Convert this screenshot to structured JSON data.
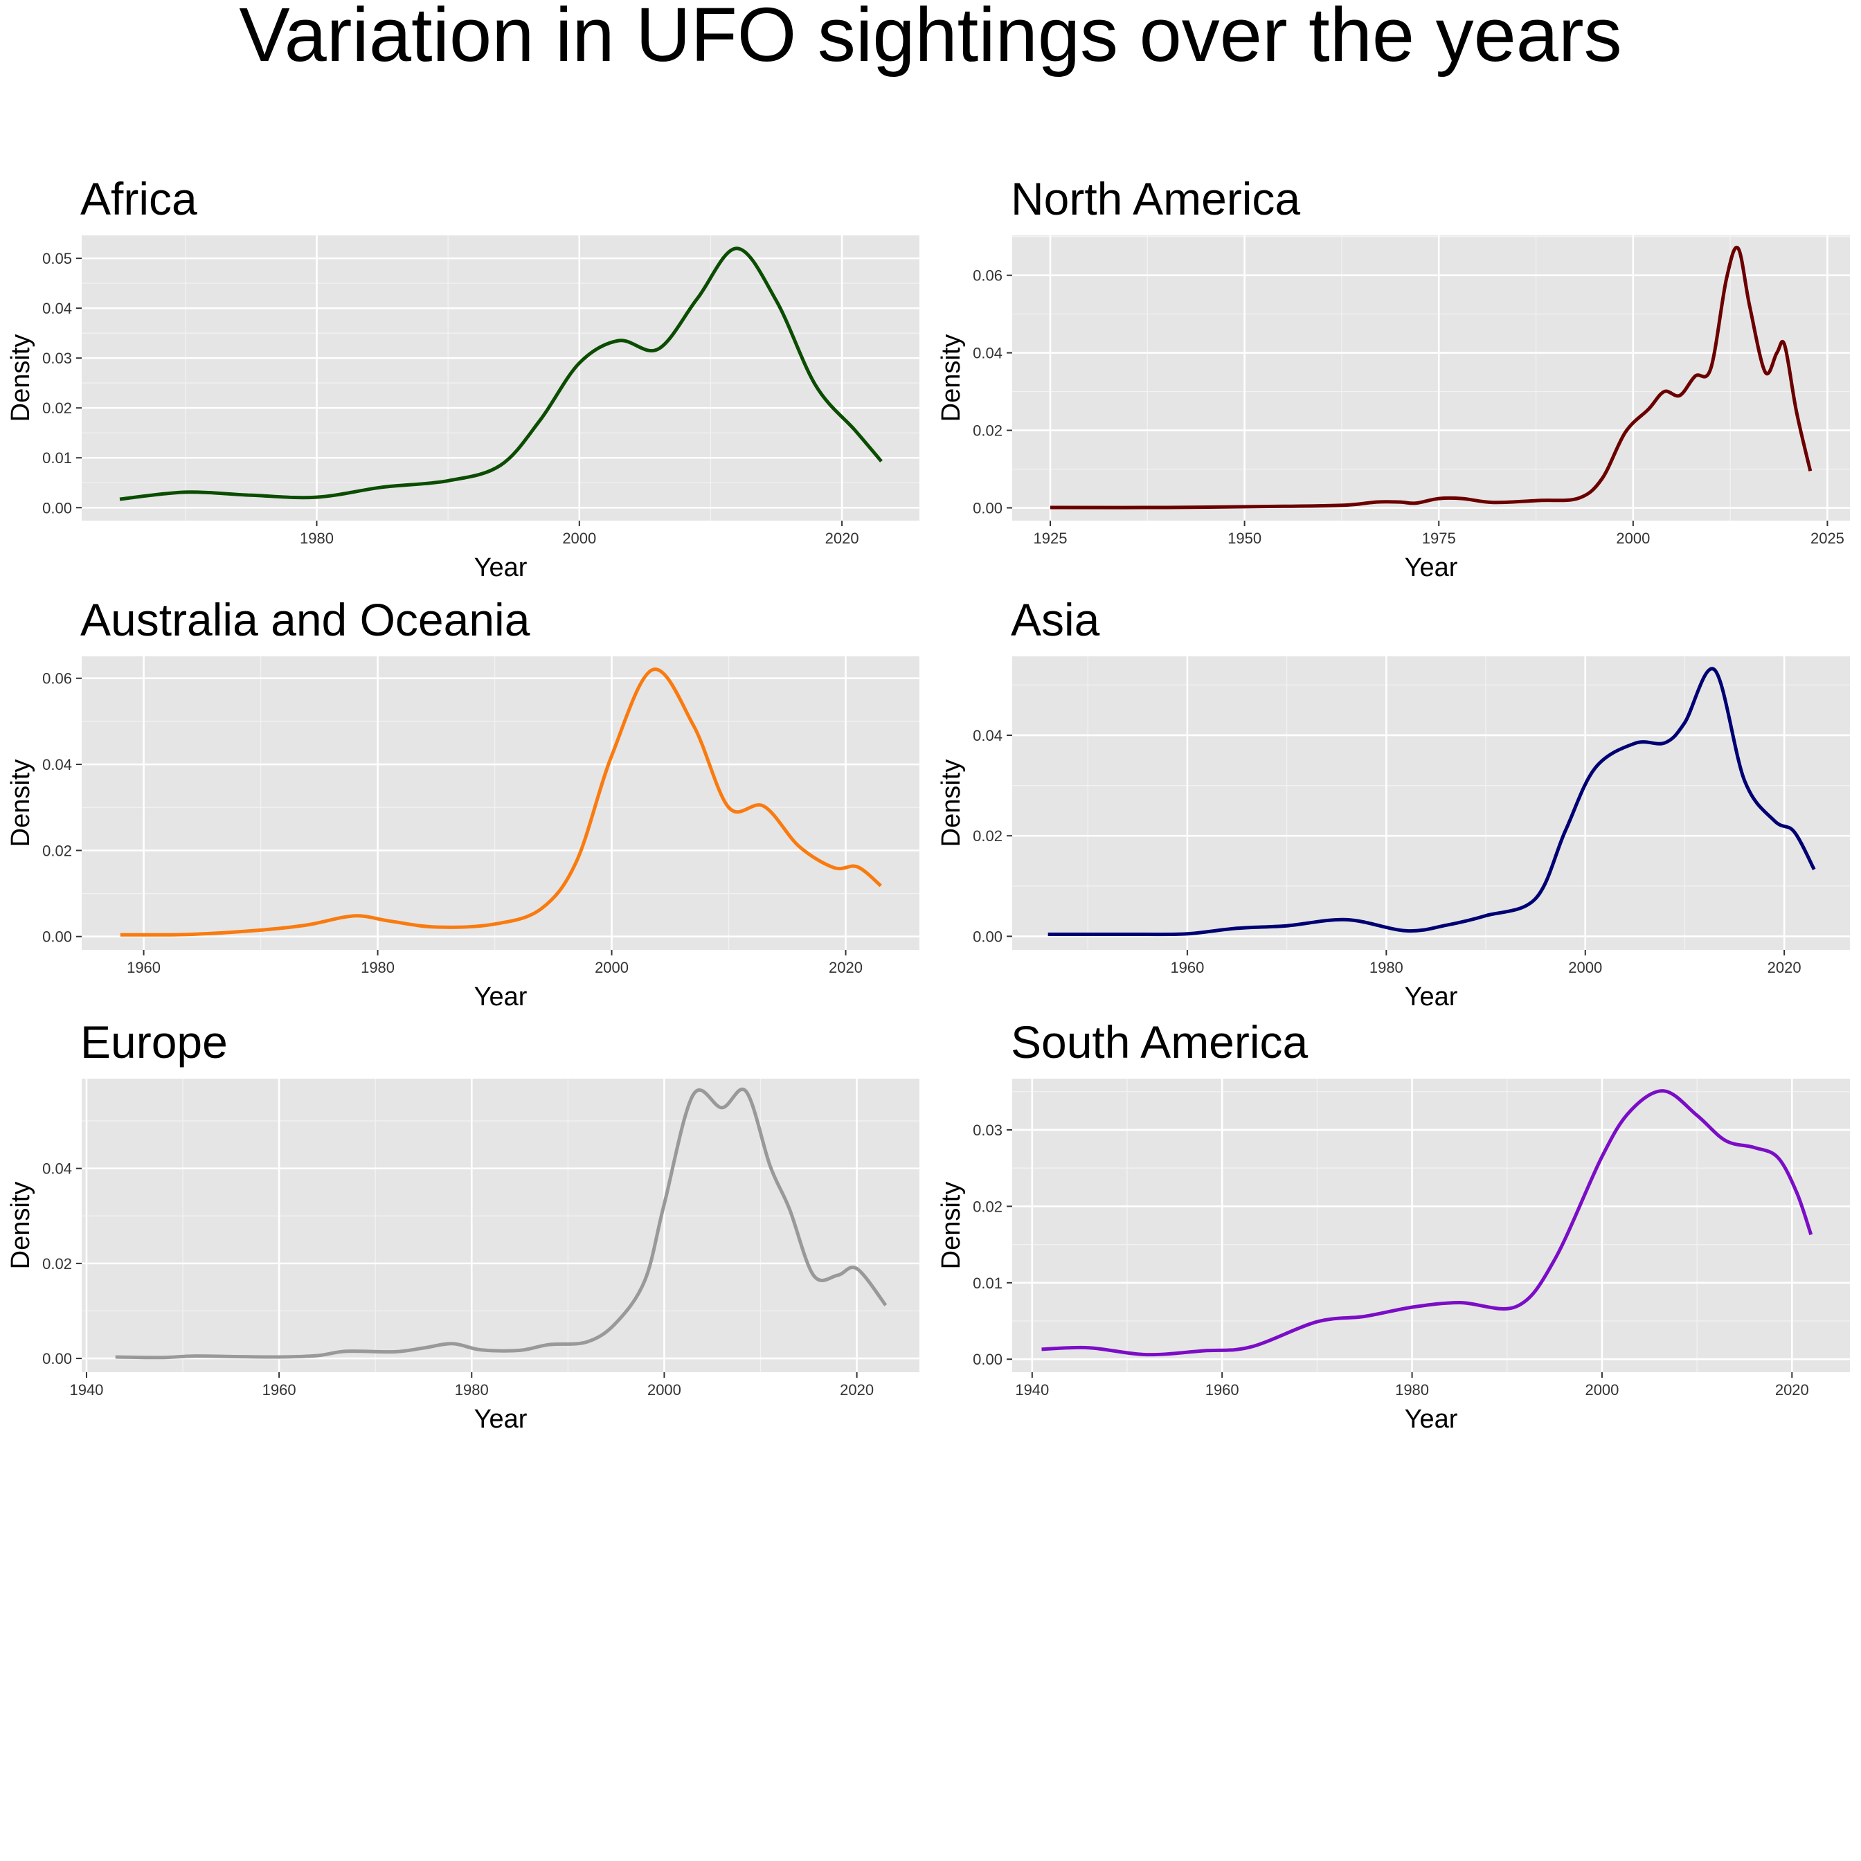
{
  "title": "Variation in UFO sightings over the years",
  "chart_data": [
    {
      "type": "line",
      "title": "Africa",
      "xlabel": "Year",
      "ylabel": "Density",
      "color": "#0b4d00",
      "xlim": [
        1962.1,
        2025.9
      ],
      "ylim": [
        -0.0026,
        0.0546
      ],
      "xticks": [
        1980,
        2000,
        2020
      ],
      "yticks": [
        0.0,
        0.01,
        0.02,
        0.03,
        0.04,
        0.05
      ],
      "ytick_labels": [
        "0.00",
        "0.01",
        "0.02",
        "0.03",
        "0.04",
        "0.05"
      ],
      "grid": true,
      "x": [
        1965,
        1970,
        1975,
        1980,
        1985,
        1990,
        1994,
        1997,
        2000,
        2003,
        2006,
        2009,
        2012,
        2015,
        2018,
        2021,
        2023
      ],
      "y": [
        0.0017,
        0.0031,
        0.0025,
        0.0021,
        0.0041,
        0.0054,
        0.0085,
        0.0175,
        0.029,
        0.0335,
        0.0318,
        0.042,
        0.052,
        0.0415,
        0.0245,
        0.0155,
        0.0093
      ]
    },
    {
      "type": "line",
      "title": "North America",
      "xlabel": "Year",
      "ylabel": "Density",
      "color": "#6b0000",
      "xlim": [
        1920.1,
        2027.9
      ],
      "ylim": [
        -0.0033,
        0.0703
      ],
      "xticks": [
        1925,
        1950,
        1975,
        2000,
        2025
      ],
      "yticks": [
        0.0,
        0.02,
        0.04,
        0.06
      ],
      "ytick_labels": [
        "0.00",
        "0.02",
        "0.04",
        "0.06"
      ],
      "grid": true,
      "x": [
        1925,
        1940,
        1955,
        1963,
        1967,
        1970,
        1972,
        1975,
        1978,
        1982,
        1988,
        1993,
        1996,
        1999,
        2002,
        2004,
        2006,
        2008,
        2010,
        2012,
        2013.5,
        2015,
        2017,
        2018.5,
        2019.5,
        2021,
        2022.8
      ],
      "y": [
        0.0001,
        0.0001,
        0.0004,
        0.0007,
        0.0015,
        0.0015,
        0.0012,
        0.0024,
        0.0024,
        0.0014,
        0.0019,
        0.0025,
        0.0075,
        0.0195,
        0.0255,
        0.03,
        0.029,
        0.034,
        0.036,
        0.059,
        0.067,
        0.052,
        0.035,
        0.04,
        0.042,
        0.025,
        0.0095
      ]
    },
    {
      "type": "line",
      "title": "Australia and Oceania",
      "xlabel": "Year",
      "ylabel": "Density",
      "color": "#f97b10",
      "xlim": [
        1954.7,
        2026.3
      ],
      "ylim": [
        -0.0031,
        0.0651
      ],
      "xticks": [
        1960,
        1980,
        2000,
        2020
      ],
      "yticks": [
        0.0,
        0.02,
        0.04,
        0.06
      ],
      "ytick_labels": [
        "0.00",
        "0.02",
        "0.04",
        "0.06"
      ],
      "grid": true,
      "x": [
        1958,
        1964,
        1970,
        1974,
        1978,
        1981,
        1985,
        1990,
        1994,
        1997,
        2000,
        2003.5,
        2007,
        2010,
        2013,
        2016,
        2019,
        2021,
        2023
      ],
      "y": [
        0.0004,
        0.0005,
        0.0015,
        0.0027,
        0.0048,
        0.0036,
        0.0022,
        0.0029,
        0.0065,
        0.0175,
        0.042,
        0.062,
        0.049,
        0.03,
        0.0303,
        0.021,
        0.016,
        0.0162,
        0.0118
      ]
    },
    {
      "type": "line",
      "title": "Asia",
      "xlabel": "Year",
      "ylabel": "Density",
      "color": "#000073",
      "xlim": [
        1942.4,
        2026.6
      ],
      "ylim": [
        -0.0027,
        0.0557
      ],
      "xticks": [
        1960,
        1980,
        2000,
        2020
      ],
      "yticks": [
        0.0,
        0.02,
        0.04
      ],
      "ytick_labels": [
        "0.00",
        "0.02",
        "0.04"
      ],
      "grid": true,
      "x": [
        1946,
        1955,
        1960,
        1965,
        1970,
        1976,
        1982,
        1986,
        1990,
        1995,
        1998,
        2001,
        2005,
        2008,
        2010,
        2013,
        2016,
        2019,
        2021,
        2023
      ],
      "y": [
        0.0004,
        0.0004,
        0.0005,
        0.0016,
        0.0021,
        0.0033,
        0.0011,
        0.0022,
        0.0041,
        0.0075,
        0.021,
        0.0335,
        0.0384,
        0.0385,
        0.0425,
        0.053,
        0.031,
        0.023,
        0.0208,
        0.0133
      ]
    },
    {
      "type": "line",
      "title": "Europe",
      "xlabel": "Year",
      "ylabel": "Density",
      "color": "#999999",
      "xlim": [
        1939.5,
        2026.5
      ],
      "ylim": [
        -0.0029,
        0.0589
      ],
      "xticks": [
        1940,
        1960,
        1980,
        2000,
        2020
      ],
      "yticks": [
        0.0,
        0.02,
        0.04
      ],
      "ytick_labels": [
        "0.00",
        "0.02",
        "0.04"
      ],
      "grid": true,
      "x": [
        1943,
        1948,
        1951,
        1955,
        1960,
        1964,
        1967,
        1972,
        1975,
        1978,
        1981,
        1985,
        1988,
        1992,
        1995,
        1998,
        2000,
        2003,
        2006,
        2008.5,
        2011,
        2013,
        2015.5,
        2018,
        2020,
        2023
      ],
      "y": [
        0.0003,
        0.0002,
        0.0005,
        0.0004,
        0.0003,
        0.0006,
        0.0015,
        0.0014,
        0.0022,
        0.0031,
        0.0018,
        0.0017,
        0.0029,
        0.0035,
        0.0075,
        0.0165,
        0.0325,
        0.0555,
        0.0528,
        0.0562,
        0.0405,
        0.0315,
        0.0175,
        0.0175,
        0.0189,
        0.0112
      ]
    },
    {
      "type": "line",
      "title": "South America",
      "xlabel": "Year",
      "ylabel": "Density",
      "color": "#7b0dc6",
      "xlim": [
        1937.9,
        2026.1
      ],
      "ylim": [
        -0.0017,
        0.0367
      ],
      "xticks": [
        1940,
        1960,
        1980,
        2000,
        2020
      ],
      "yticks": [
        0.0,
        0.01,
        0.02,
        0.03
      ],
      "ytick_labels": [
        "0.00",
        "0.01",
        "0.02",
        "0.03"
      ],
      "grid": true,
      "x": [
        1941,
        1946,
        1952,
        1958,
        1963,
        1970,
        1975,
        1980,
        1985,
        1991,
        1995,
        2000,
        2003,
        2006.5,
        2010,
        2013,
        2016,
        2018.5,
        2020.5,
        2022
      ],
      "y": [
        0.0013,
        0.0015,
        0.0006,
        0.0011,
        0.0016,
        0.0049,
        0.0056,
        0.0068,
        0.0074,
        0.0069,
        0.013,
        0.0265,
        0.0325,
        0.0351,
        0.0319,
        0.0286,
        0.0277,
        0.0264,
        0.0218,
        0.0163
      ]
    }
  ]
}
